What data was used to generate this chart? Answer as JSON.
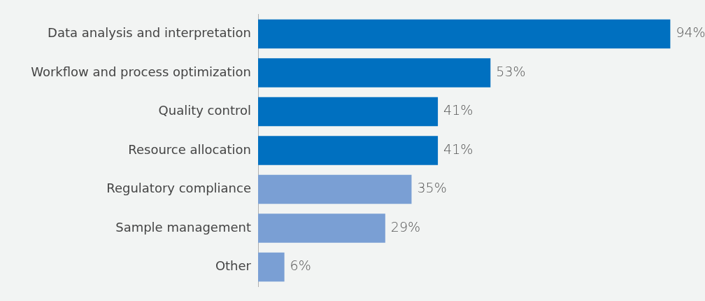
{
  "chart_data": {
    "type": "bar",
    "orientation": "horizontal",
    "categories": [
      "Data analysis and interpretation",
      "Workflow and process optimization",
      "Quality control",
      "Resource allocation",
      "Regulatory compliance",
      "Sample management",
      "Other"
    ],
    "values": [
      94,
      53,
      41,
      41,
      35,
      29,
      6
    ],
    "value_labels": [
      "94%",
      "53%",
      "41%",
      "41%",
      "35%",
      "29%",
      "6%"
    ],
    "colors": [
      "#0070c0",
      "#0070c0",
      "#0070c0",
      "#0070c0",
      "#7a9fd4",
      "#7a9fd4",
      "#7a9fd4"
    ],
    "legend": false
  }
}
